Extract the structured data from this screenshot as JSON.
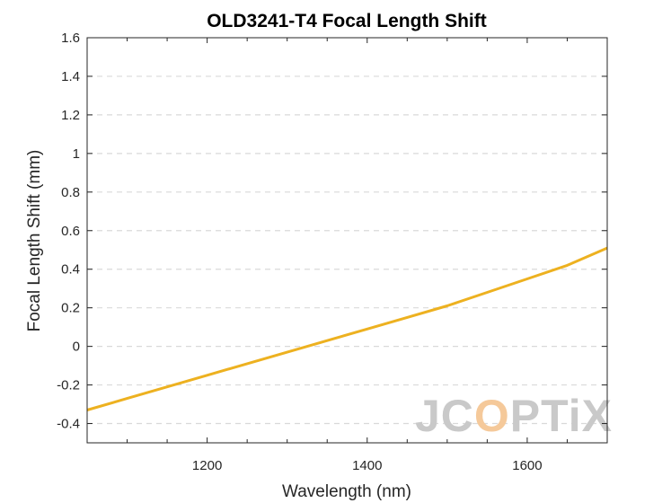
{
  "chart_data": {
    "type": "line",
    "title": "OLD3241-T4 Focal Length Shift",
    "xlabel": "Wavelength (nm)",
    "ylabel": "Focal Length Shift (mm)",
    "xlim": [
      1050,
      1700
    ],
    "ylim": [
      -0.5,
      1.6
    ],
    "xticks": [
      1200,
      1400,
      1600
    ],
    "yticks": [
      -0.4,
      -0.2,
      0,
      0.2,
      0.4,
      0.6,
      0.8,
      1,
      1.2,
      1.4,
      1.6
    ],
    "ytick_labels": [
      "-0.4",
      "-0.2",
      "0",
      "0.2",
      "0.4",
      "0.6",
      "0.8",
      "1",
      "1.2",
      "1.4",
      "1.6"
    ],
    "grid": "horizontal dashed",
    "series": [
      {
        "color": "#EDB120",
        "x": [
          1050,
          1100,
          1150,
          1200,
          1250,
          1300,
          1350,
          1400,
          1450,
          1500,
          1550,
          1600,
          1650,
          1700
        ],
        "y": [
          -0.33,
          -0.27,
          -0.21,
          -0.15,
          -0.09,
          -0.03,
          0.03,
          0.09,
          0.15,
          0.21,
          0.28,
          0.35,
          0.42,
          0.51
        ]
      }
    ]
  },
  "watermark": {
    "text_main": "JC",
    "text_accent": "O",
    "text_end": "PTiX",
    "color": "#c9c9c9",
    "accent_color": "#f5c99a"
  }
}
